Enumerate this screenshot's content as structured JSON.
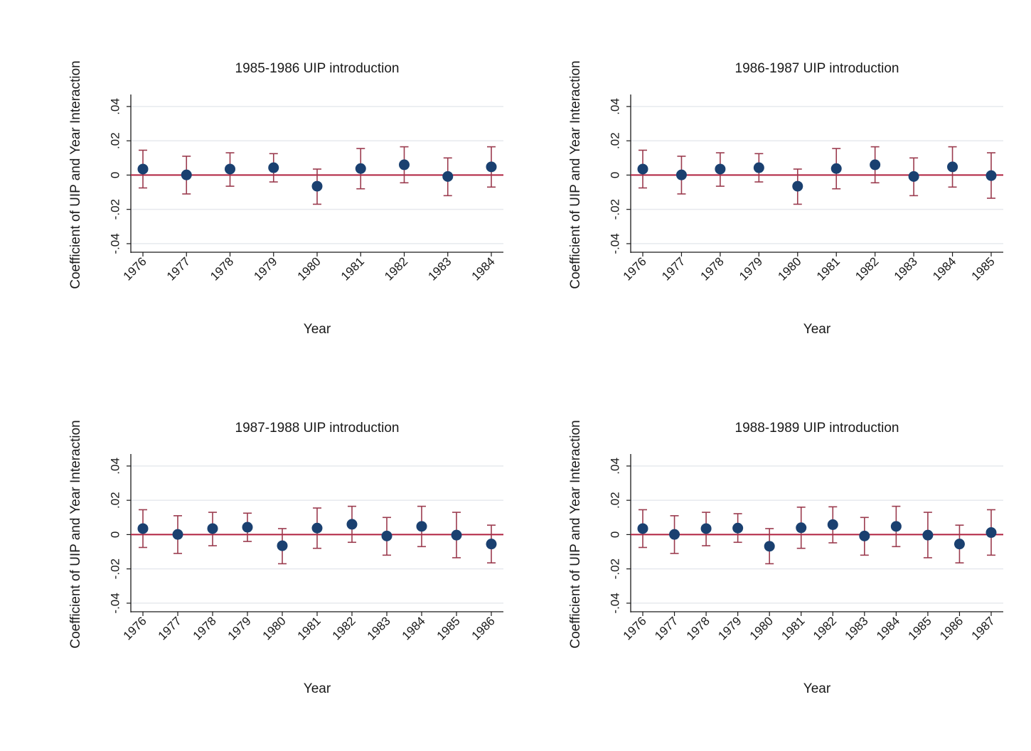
{
  "chart_data": [
    {
      "type": "scatter",
      "title": "1985-1986 UIP introduction",
      "xlabel": "Year",
      "ylabel": "Coefficient of UIP and Year Interaction",
      "ylim": [
        -0.045,
        0.047
      ],
      "yticks": [
        -0.04,
        -0.02,
        0,
        0.02,
        0.04
      ],
      "ytick_labels": [
        "-.04",
        "-.02",
        "0",
        ".02",
        ".04"
      ],
      "categories": [
        "1976",
        "1977",
        "1978",
        "1979",
        "1980",
        "1981",
        "1982",
        "1983",
        "1984"
      ],
      "values": [
        0.0035,
        0.0001,
        0.0035,
        0.0043,
        -0.0065,
        0.0038,
        0.006,
        -0.0008,
        0.0048
      ],
      "ci_low": [
        -0.0075,
        -0.011,
        -0.0065,
        -0.004,
        -0.017,
        -0.008,
        -0.0045,
        -0.012,
        -0.007
      ],
      "ci_high": [
        0.0145,
        0.011,
        0.013,
        0.0125,
        0.0035,
        0.0155,
        0.0165,
        0.01,
        0.0165
      ],
      "reference_line": 0,
      "grid": true
    },
    {
      "type": "scatter",
      "title": "1986-1987 UIP introduction",
      "xlabel": "Year",
      "ylabel": "Coefficient of UIP and Year Interaction",
      "ylim": [
        -0.045,
        0.047
      ],
      "yticks": [
        -0.04,
        -0.02,
        0,
        0.02,
        0.04
      ],
      "ytick_labels": [
        "-.04",
        "-.02",
        "0",
        ".02",
        ".04"
      ],
      "categories": [
        "1976",
        "1977",
        "1978",
        "1979",
        "1980",
        "1981",
        "1982",
        "1983",
        "1984",
        "1985"
      ],
      "values": [
        0.0035,
        0.0001,
        0.0035,
        0.0043,
        -0.0065,
        0.0038,
        0.006,
        -0.0008,
        0.0048,
        -0.0003
      ],
      "ci_low": [
        -0.0075,
        -0.011,
        -0.0065,
        -0.004,
        -0.017,
        -0.008,
        -0.0045,
        -0.012,
        -0.007,
        -0.0135
      ],
      "ci_high": [
        0.0145,
        0.011,
        0.013,
        0.0125,
        0.0035,
        0.0155,
        0.0165,
        0.01,
        0.0165,
        0.013
      ],
      "reference_line": 0,
      "grid": true
    },
    {
      "type": "scatter",
      "title": "1987-1988 UIP introduction",
      "xlabel": "Year",
      "ylabel": "Coefficient of UIP and Year Interaction",
      "ylim": [
        -0.045,
        0.047
      ],
      "yticks": [
        -0.04,
        -0.02,
        0,
        0.02,
        0.04
      ],
      "ytick_labels": [
        "-.04",
        "-.02",
        "0",
        ".02",
        ".04"
      ],
      "categories": [
        "1976",
        "1977",
        "1978",
        "1979",
        "1980",
        "1981",
        "1982",
        "1983",
        "1984",
        "1985",
        "1986"
      ],
      "values": [
        0.0035,
        0.0001,
        0.0035,
        0.0043,
        -0.0065,
        0.0038,
        0.006,
        -0.0008,
        0.0048,
        -0.0003,
        -0.0055
      ],
      "ci_low": [
        -0.0075,
        -0.011,
        -0.0065,
        -0.004,
        -0.017,
        -0.008,
        -0.0045,
        -0.012,
        -0.007,
        -0.0135,
        -0.0165
      ],
      "ci_high": [
        0.0145,
        0.011,
        0.013,
        0.0125,
        0.0035,
        0.0155,
        0.0165,
        0.01,
        0.0165,
        0.013,
        0.0055
      ],
      "reference_line": 0,
      "grid": true
    },
    {
      "type": "scatter",
      "title": "1988-1989 UIP introduction",
      "xlabel": "Year",
      "ylabel": "Coefficient of UIP and Year Interaction",
      "ylim": [
        -0.045,
        0.047
      ],
      "yticks": [
        -0.04,
        -0.02,
        0,
        0.02,
        0.04
      ],
      "ytick_labels": [
        "-.04",
        "-.02",
        "0",
        ".02",
        ".04"
      ],
      "categories": [
        "1976",
        "1977",
        "1978",
        "1979",
        "1980",
        "1981",
        "1982",
        "1983",
        "1984",
        "1985",
        "1986",
        "1987"
      ],
      "values": [
        0.0035,
        0.0001,
        0.0035,
        0.0038,
        -0.0068,
        0.004,
        0.0058,
        -0.0008,
        0.0048,
        -0.0003,
        -0.0055,
        0.0012
      ],
      "ci_low": [
        -0.0075,
        -0.011,
        -0.0065,
        -0.0045,
        -0.017,
        -0.008,
        -0.0048,
        -0.012,
        -0.007,
        -0.0135,
        -0.0165,
        -0.012
      ],
      "ci_high": [
        0.0145,
        0.011,
        0.013,
        0.0122,
        0.0035,
        0.016,
        0.0162,
        0.01,
        0.0165,
        0.013,
        0.0055,
        0.0145
      ],
      "reference_line": 0,
      "grid": true
    }
  ],
  "colors": {
    "background": "#ffffff",
    "marker": "#1a4070",
    "error_bar": "#9b3b4e",
    "reference_line": "#b0203f",
    "grid": "#e6e9ee",
    "axis": "#1a1a1a"
  }
}
